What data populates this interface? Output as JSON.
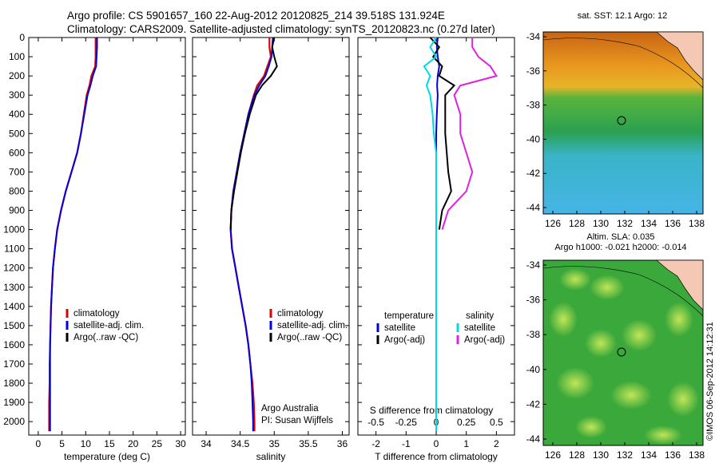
{
  "header": {
    "line1": "Argo profile: CS 5901657_160 22-Aug-2012 20120825_214 39.518S 131.924E",
    "line2": "Climatology: CARS2009. Satellite-adjusted climatology: synTS_20120823.nc (0.27d later)"
  },
  "colors": {
    "climatology": "#e00000",
    "satellite": "#0000e0",
    "argo": "#000000",
    "sat_salinity": "#00d8e8",
    "argo_salinity": "#e020e0"
  },
  "depth_ticks": [
    "0",
    "100",
    "200",
    "300",
    "400",
    "500",
    "600",
    "700",
    "800",
    "900",
    "1000",
    "1100",
    "1200",
    "1300",
    "1400",
    "1500",
    "1600",
    "1700",
    "1800",
    "1900",
    "2000"
  ],
  "chart_data": [
    {
      "type": "line",
      "xlabel": "temperature (deg C)",
      "xlim": [
        -2,
        31
      ],
      "ylim": [
        2070,
        0
      ],
      "x_ticks": [
        "0",
        "5",
        "10",
        "15",
        "20",
        "25",
        "30"
      ],
      "y_values": [
        0,
        50,
        100,
        150,
        200,
        250,
        300,
        400,
        500,
        600,
        700,
        800,
        900,
        1000,
        1100,
        1200,
        1300,
        1400,
        1500,
        1600,
        1700,
        1800,
        1900,
        2000,
        2050
      ],
      "series": [
        {
          "name": "climatology",
          "values": [
            12.1,
            12.1,
            12.1,
            12.0,
            11.2,
            10.8,
            10.2,
            9.6,
            9.0,
            8.2,
            7.0,
            5.8,
            4.8,
            4.0,
            3.5,
            3.1,
            2.9,
            2.7,
            2.6,
            2.5,
            2.4,
            2.4,
            2.3,
            2.3,
            2.3
          ]
        },
        {
          "name": "satellite-adj. clim.",
          "values": [
            12.4,
            12.4,
            12.3,
            12.2,
            11.5,
            11.0,
            10.4,
            9.7,
            9.0,
            8.2,
            7.0,
            5.8,
            4.8,
            4.0,
            3.5,
            3.1,
            2.9,
            2.7,
            2.6,
            2.5,
            2.5,
            2.5,
            2.5,
            2.5,
            2.5
          ]
        },
        {
          "name": "Argo(..raw -QC)",
          "values": [
            null,
            null,
            null,
            null,
            null,
            null,
            null,
            null,
            null,
            null,
            null,
            null,
            null,
            null,
            null,
            null,
            null,
            null,
            null,
            null,
            null,
            null,
            null,
            null,
            null
          ]
        }
      ],
      "legend": [
        "climatology",
        "satellite-adj. clim.",
        "Argo(..raw -QC)"
      ]
    },
    {
      "type": "line",
      "xlabel": "salinity",
      "xlim": [
        33.8,
        36.1
      ],
      "ylim": [
        2070,
        0
      ],
      "x_ticks": [
        "34",
        "34.5",
        "35",
        "35.5",
        "36"
      ],
      "y_values": [
        0,
        50,
        100,
        150,
        200,
        250,
        300,
        400,
        500,
        600,
        700,
        800,
        900,
        1000,
        1100,
        1200,
        1300,
        1400,
        1500,
        1600,
        1700,
        1800,
        1900,
        2000,
        2050
      ],
      "series": [
        {
          "name": "climatology",
          "values": [
            34.93,
            34.93,
            34.95,
            34.9,
            34.85,
            34.75,
            34.7,
            34.62,
            34.56,
            34.5,
            34.45,
            34.4,
            34.37,
            34.36,
            34.38,
            34.43,
            34.48,
            34.53,
            34.58,
            34.62,
            34.65,
            34.68,
            34.7,
            34.71,
            34.71
          ]
        },
        {
          "name": "satellite-adj. clim.",
          "values": [
            34.98,
            34.97,
            34.96,
            34.92,
            34.87,
            34.78,
            34.71,
            34.62,
            34.56,
            34.5,
            34.45,
            34.4,
            34.37,
            34.36,
            34.38,
            34.43,
            34.48,
            34.53,
            34.58,
            34.62,
            34.65,
            34.67,
            34.68,
            34.69,
            34.69
          ]
        },
        {
          "name": "Argo(..raw -QC)",
          "values": [
            35.0,
            34.97,
            35.0,
            35.04,
            34.95,
            34.82,
            34.73,
            34.64,
            34.57,
            34.51,
            34.46,
            34.41,
            34.37,
            34.36,
            null,
            null,
            null,
            null,
            null,
            null,
            null,
            null,
            null,
            null,
            null
          ]
        }
      ],
      "legend": [
        "climatology",
        "satellite-adj. clim.",
        "Argo(..raw -QC)"
      ],
      "annotation": [
        "Argo Australia",
        "PI: Susan Wijffels"
      ]
    },
    {
      "type": "line",
      "xlabel": "T difference from climatology",
      "xlabel_top": "S difference from climatology",
      "xlim": [
        -2.6,
        2.6
      ],
      "ylim": [
        2070,
        0
      ],
      "x_ticks": [
        "-2",
        "-1",
        "0",
        "1",
        "2"
      ],
      "x_ticks_top": [
        "-0.5",
        "-0.25",
        "0",
        "0.25",
        "0.5"
      ],
      "y_values": [
        0,
        50,
        100,
        150,
        200,
        250,
        300,
        400,
        500,
        600,
        700,
        800,
        900,
        1000,
        1100,
        1200,
        1300,
        1400,
        1500,
        1600,
        1700,
        1800,
        1900,
        2000,
        2050
      ],
      "series": [
        {
          "name": "temperature satellite",
          "values": [
            0.05,
            0.02,
            0.05,
            0.1,
            0.05,
            0.03,
            0.05,
            0.02,
            0.0,
            0.0,
            0.0,
            0.0,
            0.0,
            0.0,
            0.0,
            0.0,
            0.0,
            0.0,
            0.0,
            0.0,
            0.0,
            0.0,
            0.0,
            0.0,
            0.0
          ]
        },
        {
          "name": "temperature Argo(-adj)",
          "values": [
            -0.2,
            0.1,
            -0.1,
            0.2,
            0.1,
            0.6,
            0.3,
            0.3,
            0.3,
            0.35,
            0.4,
            0.5,
            0.2,
            0.1,
            null,
            null,
            null,
            null,
            null,
            null,
            null,
            null,
            null,
            null,
            null
          ]
        },
        {
          "name": "salinity satellite",
          "values": [
            0.0,
            -0.05,
            0.0,
            -0.1,
            -0.05,
            -0.08,
            -0.05,
            -0.03,
            -0.02,
            0.0,
            0.0,
            0.0,
            0.0,
            0.0,
            0.0,
            0.0,
            0.0,
            0.0,
            0.0,
            0.0,
            0.0,
            0.0,
            0.0,
            0.0,
            0.0
          ]
        },
        {
          "name": "salinity Argo(-adj)",
          "values": [
            0.3,
            0.3,
            0.35,
            0.45,
            0.5,
            0.2,
            0.15,
            0.2,
            0.2,
            0.25,
            0.3,
            0.25,
            0.1,
            0.05,
            null,
            null,
            null,
            null,
            null,
            null,
            null,
            null,
            null,
            null,
            null
          ]
        }
      ],
      "legend_headers": [
        "temperature",
        "salinity"
      ],
      "legend": [
        "satellite",
        "Argo(-adj)",
        "satellite",
        "Argo(-adj)"
      ]
    }
  ],
  "maps": {
    "sst": {
      "title": "sat. SST: 12.1 Argo: 12",
      "lat_ticks": [
        "-34",
        "-36",
        "-38",
        "-40",
        "-42",
        "-44"
      ],
      "lon_ticks": [
        "126",
        "128",
        "130",
        "132",
        "134",
        "136",
        "138"
      ]
    },
    "sla": {
      "title1": "Altim. SLA: 0.035",
      "title2": "Argo h1000: -0.021 h2000: -0.014",
      "lat_ticks": [
        "-34",
        "-36",
        "-38",
        "-40",
        "-42",
        "-44"
      ],
      "lon_ticks": [
        "126",
        "128",
        "130",
        "132",
        "134",
        "136",
        "138"
      ]
    }
  },
  "footer": {
    "credit": "©IMOS 06-Sep-2012 14:12:31"
  }
}
